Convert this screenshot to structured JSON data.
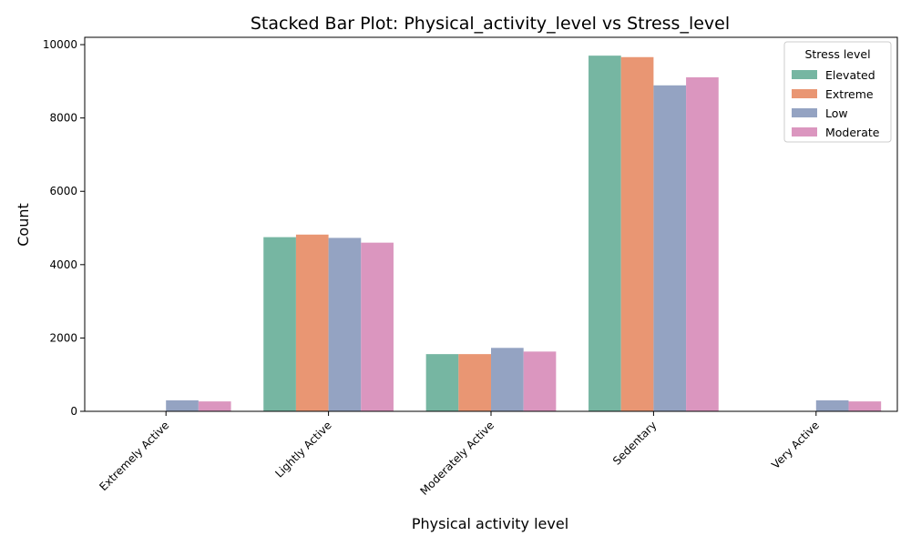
{
  "chart_data": {
    "type": "bar",
    "title": "Stacked Bar Plot: Physical_activity_level vs Stress_level",
    "xlabel": "Physical activity level",
    "ylabel": "Count",
    "categories": [
      "Extremely Active",
      "Lightly Active",
      "Moderately Active",
      "Sedentary",
      "Very Active"
    ],
    "ylim": [
      0,
      10200
    ],
    "yticks": [
      0,
      2000,
      4000,
      6000,
      8000,
      10000
    ],
    "legend": {
      "title": "Stress level",
      "position": "top-right"
    },
    "series": [
      {
        "name": "Elevated",
        "color": "#76b6a2",
        "values": [
          0,
          4750,
          1560,
          9700,
          0
        ]
      },
      {
        "name": "Extreme",
        "color": "#e99673",
        "values": [
          0,
          4820,
          1560,
          9660,
          0
        ]
      },
      {
        "name": "Low",
        "color": "#94a3c2",
        "values": [
          300,
          4730,
          1730,
          8890,
          300
        ]
      },
      {
        "name": "Moderate",
        "color": "#db96bf",
        "values": [
          270,
          4600,
          1630,
          9110,
          270
        ]
      }
    ],
    "grid": false
  }
}
